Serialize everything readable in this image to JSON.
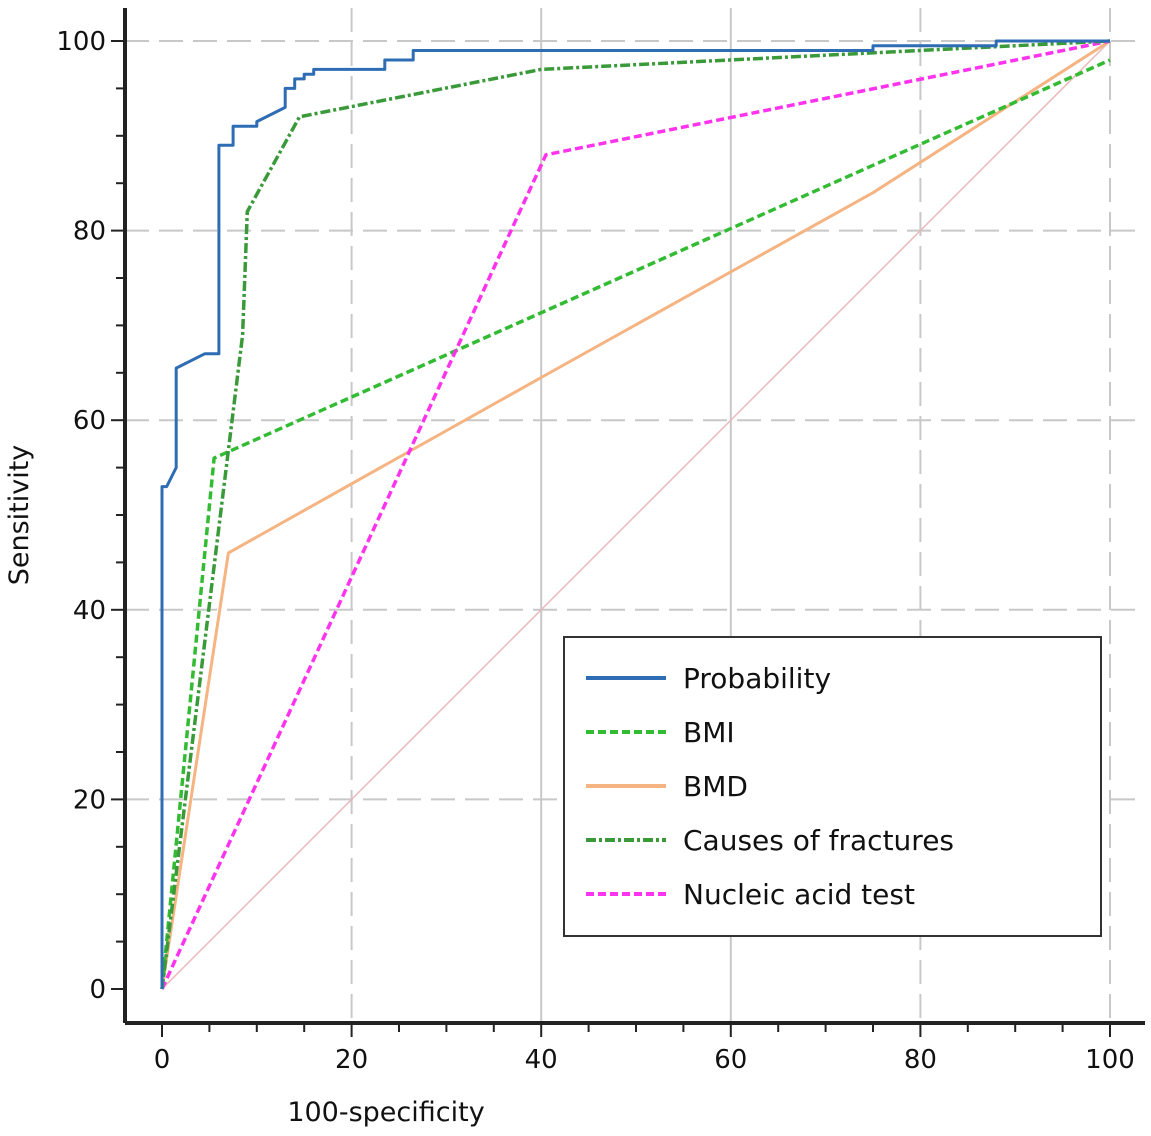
{
  "chart_data": {
    "type": "line",
    "title": "",
    "xlabel": "100-specificity",
    "ylabel": "Sensitivity",
    "xlim": [
      0,
      100
    ],
    "ylim": [
      0,
      100
    ],
    "xticks": [
      0,
      20,
      40,
      60,
      80,
      100
    ],
    "yticks": [
      0,
      20,
      40,
      60,
      80,
      100
    ],
    "grid": true,
    "legend_position": "bottom-right",
    "reference_line": {
      "name": "chance",
      "color": "#e8b8b8",
      "x": [
        0,
        100
      ],
      "y": [
        0,
        100
      ]
    },
    "series": [
      {
        "name": "Probability",
        "color": "#2e6db4",
        "style": "solid",
        "x": [
          0,
          0,
          0.5,
          1.5,
          1.5,
          4.5,
          4.5,
          6,
          6,
          7.5,
          7.5,
          10,
          10,
          13,
          13,
          14,
          14,
          15,
          15,
          16,
          16,
          23.5,
          23.5,
          26.5,
          26.5,
          75,
          75,
          88,
          88,
          100
        ],
        "y": [
          0,
          53,
          53,
          55,
          65.5,
          67,
          67,
          67,
          89,
          89,
          91,
          91,
          91.5,
          93,
          95,
          95,
          96,
          96,
          96.5,
          96.5,
          97,
          97,
          98,
          98,
          99,
          99,
          99.5,
          99.5,
          100,
          100
        ]
      },
      {
        "name": "BMI",
        "color": "#33bb33",
        "style": "dashed",
        "x": [
          0,
          5.5,
          100
        ],
        "y": [
          0,
          56,
          98
        ]
      },
      {
        "name": "BMD",
        "color": "#f5b482",
        "style": "solid",
        "x": [
          0,
          7,
          40,
          75,
          100
        ],
        "y": [
          0,
          46,
          64.5,
          84,
          100
        ]
      },
      {
        "name": "Causes of fractures",
        "color": "#3a9a3a",
        "style": "dashdot",
        "x": [
          0,
          8.5,
          9,
          14.5,
          40,
          100
        ],
        "y": [
          0,
          69,
          82,
          92,
          97,
          100
        ]
      },
      {
        "name": "Nucleic acid test",
        "color": "#ff33ee",
        "style": "dashed",
        "x": [
          0,
          40.5,
          100
        ],
        "y": [
          0,
          88,
          100
        ]
      }
    ]
  }
}
